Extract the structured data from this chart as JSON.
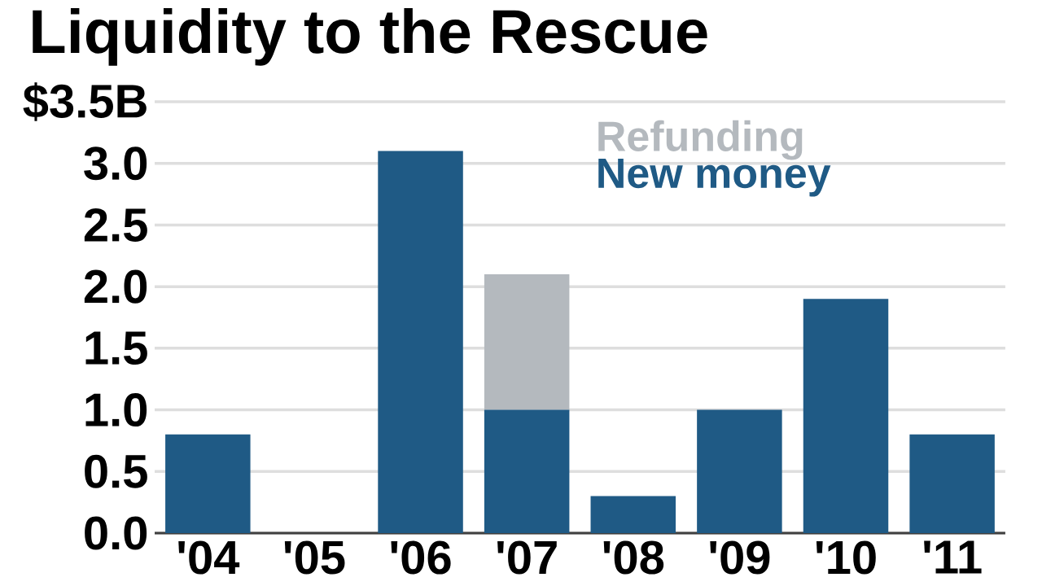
{
  "chart_data": {
    "type": "bar",
    "title": "Liquidity to the Rescue",
    "categories": [
      "'04",
      "'05",
      "'06",
      "'07",
      "'08",
      "'09",
      "'10",
      "'11"
    ],
    "series": [
      {
        "name": "New money",
        "color": "#1f5a85",
        "values": [
          0.8,
          null,
          3.1,
          1.0,
          0.3,
          1.0,
          1.9,
          0.8
        ]
      },
      {
        "name": "Refunding",
        "color": "#b4b9be",
        "values": [
          null,
          null,
          null,
          1.1,
          null,
          null,
          null,
          null
        ]
      }
    ],
    "stacked": true,
    "ylim": [
      0,
      3.5
    ],
    "yticks": [
      {
        "value": 0,
        "label": "0.0"
      },
      {
        "value": 0.5,
        "label": "0.5"
      },
      {
        "value": 1.0,
        "label": "1.0"
      },
      {
        "value": 1.5,
        "label": "1.5"
      },
      {
        "value": 2.0,
        "label": "2.0"
      },
      {
        "value": 2.5,
        "label": "2.5"
      },
      {
        "value": 3.0,
        "label": "3.0"
      },
      {
        "value": 3.5,
        "label": "$3.5B"
      }
    ],
    "grid": "y",
    "legend": "top right"
  }
}
